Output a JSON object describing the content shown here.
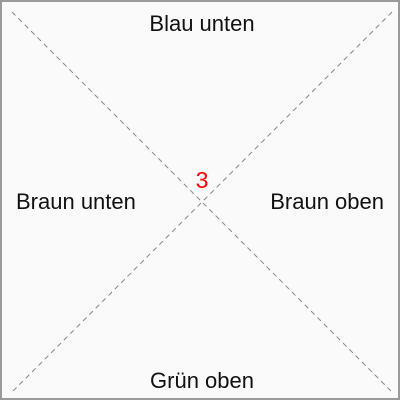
{
  "board": {
    "labels": {
      "top": "Blau unten",
      "bottom": "Grün oben",
      "left": "Braun unten",
      "right": "Braun oben"
    },
    "counter": "3",
    "counter_color": "#ff0000",
    "line_color": "#888888",
    "border_color": "#9a9a9a",
    "background_color": "#fafafa"
  }
}
